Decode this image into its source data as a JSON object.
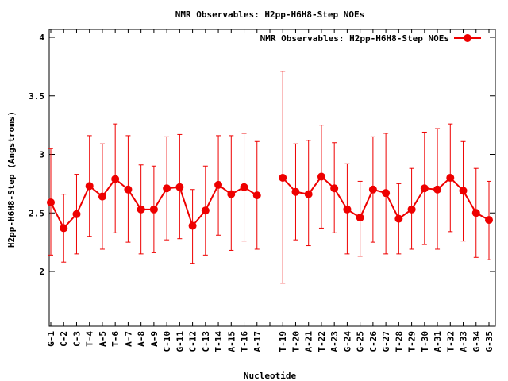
{
  "chart_data": {
    "type": "line",
    "title": "NMR Observables: H2pp-H6H8-Step NOEs",
    "xlabel": "Nucleotide",
    "ylabel": "H2pp-H6H8-Step (Angstroms)",
    "ylim": [
      1.5,
      4.05
    ],
    "yticks": [
      2,
      2.5,
      3,
      3.5,
      4
    ],
    "grid": false,
    "legend_position": "top-right",
    "colors": {
      "series": "#ee0000",
      "axis": "#000000"
    },
    "categories": [
      "G-1",
      "C-2",
      "C-3",
      "T-4",
      "A-5",
      "T-6",
      "A-7",
      "A-8",
      "A-9",
      "C-10",
      "G-11",
      "C-12",
      "C-13",
      "T-14",
      "A-15",
      "T-16",
      "A-17",
      "",
      "T-19",
      "T-20",
      "A-21",
      "T-22",
      "A-23",
      "G-24",
      "G-25",
      "C-26",
      "G-27",
      "T-28",
      "T-29",
      "T-30",
      "A-31",
      "T-32",
      "A-33",
      "G-34",
      "G-35"
    ],
    "series": [
      {
        "name": "NMR Observables: H2pp-H6H8-Step NOEs",
        "values": [
          2.59,
          2.37,
          2.49,
          2.73,
          2.64,
          2.79,
          2.7,
          2.53,
          2.53,
          2.71,
          2.72,
          2.39,
          2.52,
          2.74,
          2.66,
          2.72,
          2.65,
          null,
          2.8,
          2.68,
          2.66,
          2.81,
          2.71,
          2.53,
          2.46,
          2.7,
          2.67,
          2.45,
          2.53,
          2.71,
          2.7,
          2.8,
          2.69,
          2.5,
          2.44
        ],
        "err_low": [
          2.14,
          2.08,
          2.15,
          2.3,
          2.19,
          2.33,
          2.25,
          2.15,
          2.16,
          2.27,
          2.28,
          2.07,
          2.14,
          2.31,
          2.18,
          2.26,
          2.19,
          null,
          1.9,
          2.27,
          2.22,
          2.37,
          2.33,
          2.15,
          2.13,
          2.25,
          2.15,
          2.15,
          2.19,
          2.23,
          2.19,
          2.34,
          2.26,
          2.12,
          2.1
        ],
        "err_high": [
          3.05,
          2.66,
          2.83,
          3.16,
          3.09,
          3.26,
          3.16,
          2.91,
          2.9,
          3.15,
          3.17,
          2.7,
          2.9,
          3.16,
          3.16,
          3.18,
          3.11,
          null,
          3.71,
          3.09,
          3.12,
          3.25,
          3.1,
          2.92,
          2.77,
          3.15,
          3.18,
          2.75,
          2.88,
          3.19,
          3.22,
          3.26,
          3.11,
          2.88,
          2.77
        ]
      }
    ]
  }
}
